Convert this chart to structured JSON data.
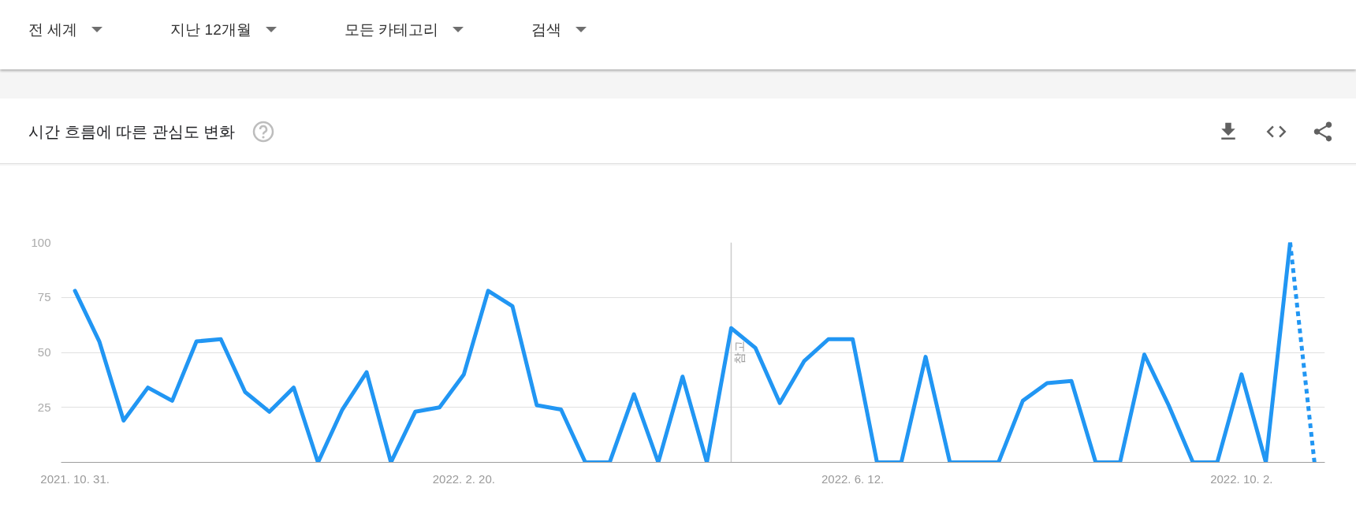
{
  "chart_data": {
    "type": "line",
    "title": "시간 흐름에 따른 관심도 변화",
    "annotations": [
      "전 세계",
      "지난 12개월",
      "모든 카테고리",
      "검색"
    ],
    "x": [
      "2021-10-31",
      "2021-11-07",
      "2021-11-14",
      "2021-11-21",
      "2021-11-28",
      "2021-12-05",
      "2021-12-12",
      "2021-12-19",
      "2021-12-26",
      "2022-01-02",
      "2022-01-09",
      "2022-01-16",
      "2022-01-23",
      "2022-01-30",
      "2022-02-06",
      "2022-02-13",
      "2022-02-20",
      "2022-02-27",
      "2022-03-06",
      "2022-03-13",
      "2022-03-20",
      "2022-03-27",
      "2022-04-03",
      "2022-04-10",
      "2022-04-17",
      "2022-04-24",
      "2022-05-01",
      "2022-05-08",
      "2022-05-15",
      "2022-05-22",
      "2022-05-29",
      "2022-06-05",
      "2022-06-12",
      "2022-06-19",
      "2022-06-26",
      "2022-07-03",
      "2022-07-10",
      "2022-07-17",
      "2022-07-24",
      "2022-07-31",
      "2022-08-07",
      "2022-08-14",
      "2022-08-21",
      "2022-08-28",
      "2022-09-04",
      "2022-09-11",
      "2022-09-18",
      "2022-09-25",
      "2022-10-02",
      "2022-10-09",
      "2022-10-16"
    ],
    "series": [
      {
        "color": "#2196f3",
        "values": [
          78,
          55,
          19,
          34,
          28,
          55,
          56,
          32,
          23,
          34,
          0,
          24,
          41,
          0,
          23,
          25,
          40,
          78,
          71,
          26,
          24,
          0,
          0,
          31,
          0,
          39,
          0,
          61,
          52,
          27,
          46,
          56,
          56,
          0,
          0,
          48,
          0,
          0,
          0,
          28,
          36,
          37,
          0,
          0,
          49,
          26,
          0,
          0,
          40,
          0,
          100
        ]
      },
      {
        "color": "#2196f3",
        "x": [
          "2022-10-16",
          "2022-10-23"
        ],
        "values": [
          100,
          0
        ],
        "line_style": "dotted"
      }
    ],
    "line_style": "solid",
    "xlim": [
      "2021-10-27",
      "2022-10-26"
    ],
    "xticks": [
      {
        "value": "2021-10-31",
        "label": "2021. 10. 31."
      },
      {
        "value": "2022-02-20",
        "label": "2022. 2. 20."
      },
      {
        "value": "2022-06-12",
        "label": "2022. 6. 12."
      },
      {
        "value": "2022-10-02",
        "label": "2022. 10. 2."
      }
    ],
    "ylim": [
      0,
      100
    ],
    "yticks": [
      25,
      50,
      75,
      100
    ],
    "grid": "y",
    "ref_lines": [
      {
        "axis": "x",
        "value": "2022-05-08",
        "label": "참고",
        "color": "#cccccc"
      }
    ]
  }
}
